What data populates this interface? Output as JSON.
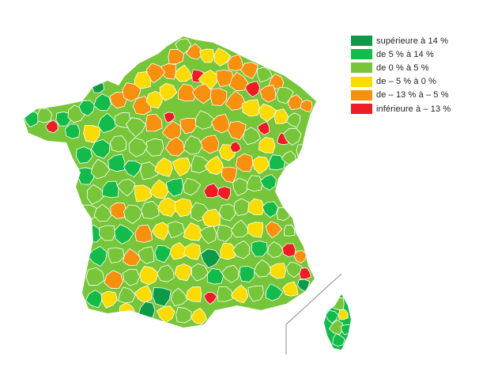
{
  "colors": {
    "dark_green": "#0a9a48",
    "green": "#13bb4b",
    "light_green": "#77c63a",
    "yellow": "#fbdb00",
    "orange": "#f7900f",
    "red": "#ee1c23"
  },
  "legend": [
    {
      "label": "supérieure à 14 %",
      "color": "#0a9a48"
    },
    {
      "label": "de 5 % à 14 %",
      "color": "#13bb4b"
    },
    {
      "label": "de 0 % à 5 %",
      "color": "#77c63a"
    },
    {
      "label": "de – 5 % à 0 %",
      "color": "#fbdb00"
    },
    {
      "label": "de – 13 % à – 5 %",
      "color": "#f7900f"
    },
    {
      "label": "inférieure à – 13 %",
      "color": "#ee1c23"
    }
  ]
}
